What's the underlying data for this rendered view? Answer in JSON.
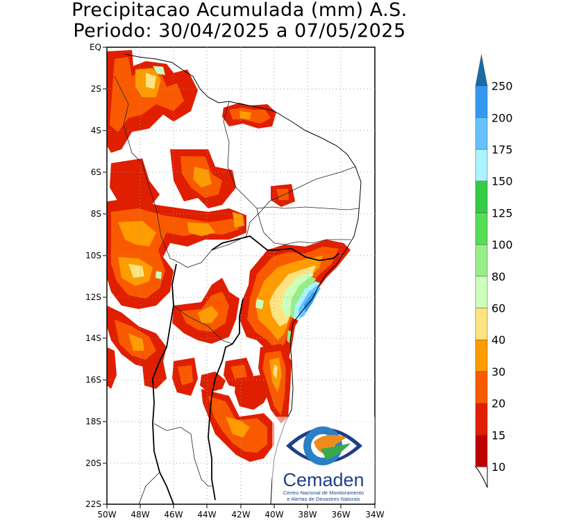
{
  "title_line1": "Precipitacao Acumulada (mm) A.S.",
  "title_line2": "Periodo: 30/04/2025 a 07/05/2025",
  "map": {
    "lon_range": [
      -50,
      -34
    ],
    "lat_range": [
      -22,
      0
    ],
    "x_ticks": [
      "50W",
      "48W",
      "46W",
      "44W",
      "42W",
      "40W",
      "38W",
      "36W",
      "34W"
    ],
    "y_ticks": [
      "EQ",
      "2S",
      "4S",
      "6S",
      "8S",
      "10S",
      "12S",
      "14S",
      "16S",
      "18S",
      "20S",
      "22S"
    ]
  },
  "colorbar": {
    "unit": "mm",
    "levels": [
      "10",
      "15",
      "20",
      "30",
      "40",
      "60",
      "80",
      "100",
      "125",
      "150",
      "175",
      "200",
      "250"
    ],
    "colors": [
      "#c00000",
      "#e01e00",
      "#f95a00",
      "#ff9c00",
      "#fee481",
      "#ccffbb",
      "#96ee88",
      "#55dd55",
      "#33cc44",
      "#aaf3ff",
      "#66c2ff",
      "#3399ee",
      "#2b7fc4",
      "#1a6aa8"
    ]
  },
  "logo": {
    "name": "Cemaden",
    "subtitle_line1": "Centro Nacional de Monitoramento",
    "subtitle_line2": "e Alertas de Desastres Naturais"
  }
}
